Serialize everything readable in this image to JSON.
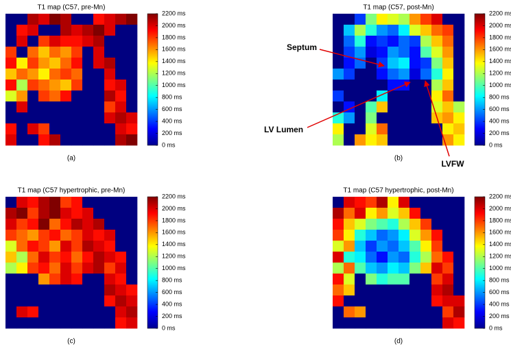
{
  "chart_data": [
    {
      "type": "heatmap",
      "title": "T1 map (C57, pre-Mn)",
      "caption": "(a)",
      "colormap": "jet",
      "zlim": [
        0,
        2200
      ],
      "colorbar_ticks": [
        {
          "value": 0,
          "label": "0 ms"
        },
        {
          "value": 200,
          "label": "200 ms"
        },
        {
          "value": 400,
          "label": "400 ms"
        },
        {
          "value": 600,
          "label": "600 ms"
        },
        {
          "value": 800,
          "label": "800 ms"
        },
        {
          "value": 1000,
          "label": "1000 ms"
        },
        {
          "value": 1200,
          "label": "1200 ms"
        },
        {
          "value": 1400,
          "label": "1400 ms"
        },
        {
          "value": 1600,
          "label": "1600 ms"
        },
        {
          "value": 1800,
          "label": "1800 ms"
        },
        {
          "value": 2000,
          "label": "2000 ms"
        },
        {
          "value": 2200,
          "label": "2200 ms"
        }
      ],
      "values": [
        [
          0,
          0,
          2100,
          2000,
          2200,
          2100,
          0,
          0,
          1900,
          2000,
          2100,
          2200
        ],
        [
          0,
          1900,
          2000,
          0,
          0,
          2100,
          2000,
          2100,
          2200,
          2000,
          0,
          0
        ],
        [
          0,
          2000,
          0,
          1800,
          2000,
          1900,
          1900,
          2000,
          2100,
          0,
          0,
          0
        ],
        [
          1800,
          0,
          1700,
          1500,
          1700,
          1600,
          1800,
          0,
          2000,
          0,
          0,
          0
        ],
        [
          1900,
          1400,
          1800,
          1600,
          1500,
          1700,
          1900,
          0,
          2000,
          2100,
          0,
          0
        ],
        [
          1500,
          1700,
          1600,
          1400,
          1700,
          1800,
          1700,
          0,
          0,
          2000,
          0,
          0
        ],
        [
          1900,
          1200,
          1800,
          1700,
          1600,
          1500,
          1800,
          0,
          0,
          1900,
          2000,
          0
        ],
        [
          1300,
          1600,
          0,
          1800,
          1700,
          1900,
          0,
          0,
          0,
          2100,
          1900,
          0
        ],
        [
          0,
          2000,
          0,
          0,
          0,
          0,
          0,
          0,
          0,
          1800,
          2000,
          0
        ],
        [
          0,
          0,
          0,
          0,
          0,
          0,
          0,
          0,
          0,
          2000,
          2100,
          2000
        ],
        [
          1900,
          0,
          2000,
          1800,
          0,
          0,
          0,
          0,
          0,
          0,
          2000,
          1900
        ],
        [
          2000,
          0,
          0,
          1900,
          2100,
          0,
          0,
          0,
          0,
          0,
          2100,
          2200
        ]
      ]
    },
    {
      "type": "heatmap",
      "title": "T1 map (C57, post-Mn)",
      "caption": "(b)",
      "colormap": "jet",
      "zlim": [
        0,
        2200
      ],
      "colorbar_ticks": [
        {
          "value": 0,
          "label": "0 ms"
        },
        {
          "value": 200,
          "label": "200 ms"
        },
        {
          "value": 400,
          "label": "400 ms"
        },
        {
          "value": 600,
          "label": "600 ms"
        },
        {
          "value": 800,
          "label": "800 ms"
        },
        {
          "value": 1000,
          "label": "1000 ms"
        },
        {
          "value": 1200,
          "label": "1200 ms"
        },
        {
          "value": 1400,
          "label": "1400 ms"
        },
        {
          "value": 1600,
          "label": "1600 ms"
        },
        {
          "value": 1800,
          "label": "1800 ms"
        },
        {
          "value": 2000,
          "label": "2000 ms"
        },
        {
          "value": 2200,
          "label": "2200 ms"
        }
      ],
      "values": [
        [
          0,
          0,
          400,
          1100,
          1400,
          1300,
          1200,
          1600,
          1800,
          2000,
          0,
          0
        ],
        [
          0,
          700,
          1200,
          900,
          600,
          500,
          800,
          1300,
          1500,
          1700,
          1800,
          0
        ],
        [
          0,
          500,
          900,
          300,
          400,
          300,
          500,
          400,
          1200,
          1500,
          1700,
          0
        ],
        [
          0,
          400,
          600,
          200,
          300,
          600,
          500,
          300,
          1000,
          1300,
          1600,
          0
        ],
        [
          0,
          300,
          500,
          0,
          400,
          700,
          800,
          300,
          400,
          1100,
          1500,
          0
        ],
        [
          600,
          400,
          0,
          0,
          300,
          500,
          600,
          200,
          500,
          900,
          1400,
          0
        ],
        [
          0,
          0,
          0,
          0,
          0,
          300,
          300,
          0,
          0,
          1200,
          1500,
          0
        ],
        [
          400,
          0,
          0,
          0,
          800,
          0,
          0,
          0,
          0,
          1400,
          1700,
          0
        ],
        [
          0,
          300,
          0,
          1000,
          1500,
          0,
          0,
          0,
          0,
          1300,
          1500,
          1200
        ],
        [
          900,
          600,
          0,
          1100,
          0,
          0,
          0,
          0,
          0,
          1500,
          1600,
          1400
        ],
        [
          1400,
          0,
          0,
          1300,
          1700,
          0,
          0,
          0,
          0,
          0,
          1400,
          1500
        ],
        [
          1200,
          0,
          1600,
          1400,
          1500,
          0,
          0,
          0,
          0,
          0,
          1600,
          1400
        ]
      ],
      "annotations": [
        "Septum",
        "LV Lumen",
        "LVFW"
      ]
    },
    {
      "type": "heatmap",
      "title": "T1 map (C57 hypertrophic, pre-Mn)",
      "caption": "(c)",
      "colormap": "jet",
      "zlim": [
        0,
        2200
      ],
      "colorbar_ticks": [
        {
          "value": 0,
          "label": "0 ms"
        },
        {
          "value": 200,
          "label": "200 ms"
        },
        {
          "value": 400,
          "label": "400 ms"
        },
        {
          "value": 600,
          "label": "600 ms"
        },
        {
          "value": 800,
          "label": "800 ms"
        },
        {
          "value": 1000,
          "label": "1000 ms"
        },
        {
          "value": 1200,
          "label": "1200 ms"
        },
        {
          "value": 1400,
          "label": "1400 ms"
        },
        {
          "value": 1600,
          "label": "1600 ms"
        },
        {
          "value": 1800,
          "label": "1800 ms"
        },
        {
          "value": 2000,
          "label": "2000 ms"
        },
        {
          "value": 2200,
          "label": "2200 ms"
        }
      ],
      "values": [
        [
          0,
          2000,
          1900,
          2100,
          2200,
          1800,
          1900,
          0,
          0,
          0,
          0,
          0
        ],
        [
          2100,
          2200,
          1800,
          2100,
          2200,
          2000,
          1900,
          2000,
          0,
          0,
          0,
          0
        ],
        [
          2000,
          1800,
          1900,
          2200,
          1700,
          1900,
          2100,
          2000,
          2100,
          0,
          0,
          0
        ],
        [
          1800,
          1700,
          1600,
          1800,
          1900,
          1700,
          1800,
          2000,
          1900,
          2000,
          0,
          0
        ],
        [
          1300,
          1700,
          1900,
          1800,
          1600,
          2000,
          1800,
          2100,
          2000,
          1900,
          0,
          0
        ],
        [
          1500,
          1200,
          1700,
          2000,
          1800,
          1900,
          1700,
          1900,
          2100,
          2000,
          1900,
          0
        ],
        [
          1200,
          1400,
          1800,
          1900,
          1700,
          2000,
          1800,
          2000,
          2100,
          1800,
          2000,
          0
        ],
        [
          0,
          0,
          0,
          1600,
          1800,
          2000,
          1900,
          0,
          0,
          2000,
          1900,
          0
        ],
        [
          0,
          0,
          0,
          0,
          0,
          0,
          0,
          0,
          0,
          2100,
          2000,
          1900
        ],
        [
          0,
          0,
          0,
          0,
          0,
          0,
          0,
          0,
          0,
          1900,
          2100,
          2000
        ],
        [
          0,
          2000,
          1900,
          0,
          0,
          0,
          0,
          0,
          0,
          0,
          2000,
          2100
        ],
        [
          0,
          0,
          0,
          0,
          0,
          0,
          0,
          0,
          0,
          0,
          1900,
          2000
        ]
      ]
    },
    {
      "type": "heatmap",
      "title": "T1 map (C57 hypertrophic, post-Mn)",
      "caption": "(d)",
      "colormap": "jet",
      "zlim": [
        0,
        2200
      ],
      "colorbar_ticks": [
        {
          "value": 0,
          "label": "0 ms"
        },
        {
          "value": 200,
          "label": "200 ms"
        },
        {
          "value": 400,
          "label": "400 ms"
        },
        {
          "value": 600,
          "label": "600 ms"
        },
        {
          "value": 800,
          "label": "800 ms"
        },
        {
          "value": 1000,
          "label": "1000 ms"
        },
        {
          "value": 1200,
          "label": "1200 ms"
        },
        {
          "value": 1400,
          "label": "1400 ms"
        },
        {
          "value": 1600,
          "label": "1600 ms"
        },
        {
          "value": 1800,
          "label": "1800 ms"
        },
        {
          "value": 2000,
          "label": "2000 ms"
        },
        {
          "value": 2200,
          "label": "2200 ms"
        }
      ],
      "values": [
        [
          0,
          2000,
          1900,
          1800,
          2100,
          1400,
          2000,
          0,
          0,
          0,
          0,
          0
        ],
        [
          2100,
          1700,
          2000,
          1400,
          1600,
          1300,
          1500,
          1900,
          0,
          0,
          0,
          0
        ],
        [
          1900,
          1500,
          1300,
          1100,
          1000,
          900,
          1200,
          1500,
          1800,
          0,
          0,
          0
        ],
        [
          1800,
          1400,
          900,
          700,
          500,
          600,
          800,
          1300,
          1600,
          1900,
          0,
          0
        ],
        [
          1300,
          1600,
          700,
          400,
          600,
          500,
          700,
          1000,
          1400,
          1800,
          0,
          0
        ],
        [
          2000,
          900,
          800,
          500,
          300,
          600,
          500,
          900,
          1200,
          1700,
          1900,
          0
        ],
        [
          1200,
          1700,
          1000,
          700,
          600,
          800,
          700,
          1100,
          1500,
          2000,
          1800,
          0
        ],
        [
          1900,
          1300,
          0,
          1100,
          900,
          1000,
          1000,
          0,
          0,
          1800,
          2000,
          0
        ],
        [
          1700,
          1500,
          0,
          0,
          0,
          0,
          0,
          0,
          0,
          2000,
          2100,
          0
        ],
        [
          1900,
          0,
          0,
          0,
          0,
          0,
          0,
          0,
          0,
          1900,
          2000,
          2000
        ],
        [
          0,
          1700,
          1600,
          0,
          0,
          0,
          0,
          0,
          0,
          0,
          1800,
          2100
        ],
        [
          0,
          0,
          0,
          0,
          0,
          0,
          0,
          0,
          0,
          0,
          2000,
          1900
        ]
      ]
    }
  ]
}
